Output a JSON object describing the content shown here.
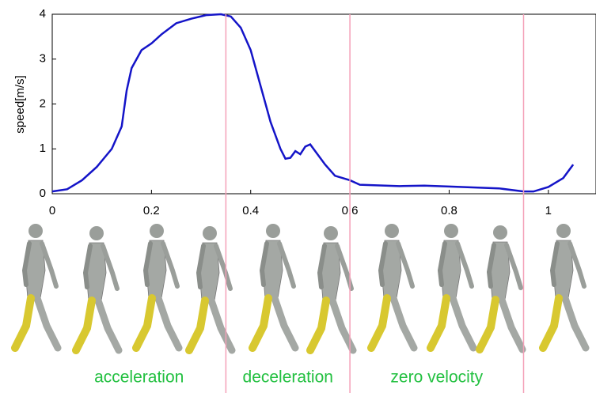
{
  "chart_data": {
    "type": "line",
    "ylabel": "speed[m/s]",
    "x": [
      0,
      0.03,
      0.06,
      0.09,
      0.12,
      0.14,
      0.15,
      0.16,
      0.18,
      0.2,
      0.22,
      0.25,
      0.28,
      0.31,
      0.34,
      0.36,
      0.38,
      0.4,
      0.42,
      0.44,
      0.46,
      0.47,
      0.48,
      0.49,
      0.5,
      0.51,
      0.52,
      0.53,
      0.55,
      0.57,
      0.6,
      0.62,
      0.7,
      0.75,
      0.8,
      0.9,
      0.95,
      0.97,
      1.0,
      1.03,
      1.05
    ],
    "series": [
      {
        "color": "#1414c8",
        "values": [
          0.05,
          0.1,
          0.3,
          0.6,
          1.0,
          1.5,
          2.3,
          2.8,
          3.2,
          3.35,
          3.55,
          3.8,
          3.9,
          3.98,
          4.0,
          3.95,
          3.7,
          3.2,
          2.4,
          1.6,
          1.0,
          0.78,
          0.8,
          0.95,
          0.88,
          1.05,
          1.1,
          0.95,
          0.65,
          0.4,
          0.3,
          0.2,
          0.17,
          0.18,
          0.16,
          0.12,
          0.05,
          0.05,
          0.15,
          0.35,
          0.65
        ]
      }
    ],
    "xlim": [
      0,
      1.096
    ],
    "ylim": [
      0,
      4
    ],
    "xticks": [
      0,
      0.2,
      0.4,
      0.6,
      0.8,
      1
    ],
    "yticks": [
      0,
      1,
      2,
      3,
      4
    ],
    "phase_boundaries": [
      0.35,
      0.6,
      0.95
    ],
    "boundary_color": "#f4a0b8",
    "phases": [
      "acceleration",
      "deceleration",
      "zero velocity"
    ]
  }
}
